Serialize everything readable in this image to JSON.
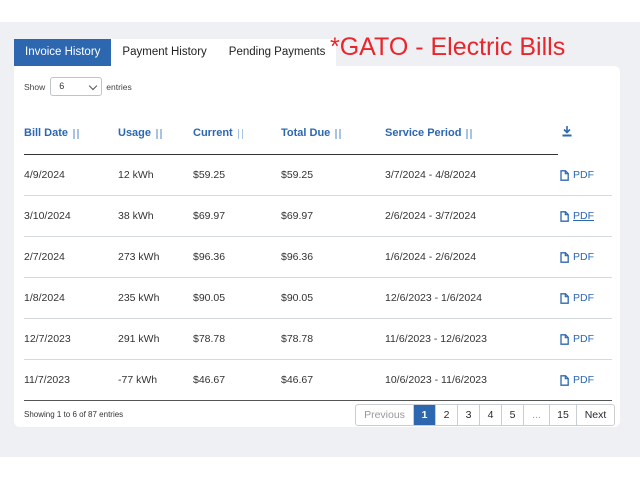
{
  "tabs": [
    {
      "label": "Invoice History",
      "active": true
    },
    {
      "label": "Payment History",
      "active": false
    },
    {
      "label": "Pending Payments",
      "active": false
    }
  ],
  "annotation": "*GATO - Electric Bills",
  "length": {
    "show_label": "Show",
    "value": "6",
    "entries_label": "entries"
  },
  "columns": [
    "Bill Date",
    "Usage",
    "Current",
    "Total Due",
    "Service Period"
  ],
  "download_column_icon": "download-icon",
  "rows": [
    {
      "bill_date": "4/9/2024",
      "usage": "12 kWh",
      "current": "$59.25",
      "total_due": "$59.25",
      "service_period": "3/7/2024 - 4/8/2024",
      "link": "PDF"
    },
    {
      "bill_date": "3/10/2024",
      "usage": "38 kWh",
      "current": "$69.97",
      "total_due": "$69.97",
      "service_period": "2/6/2024 - 3/7/2024",
      "link": "PDF"
    },
    {
      "bill_date": "2/7/2024",
      "usage": "273 kWh",
      "current": "$96.36",
      "total_due": "$96.36",
      "service_period": "1/6/2024 - 2/6/2024",
      "link": "PDF"
    },
    {
      "bill_date": "1/8/2024",
      "usage": "235 kWh",
      "current": "$90.05",
      "total_due": "$90.05",
      "service_period": "12/6/2023 - 1/6/2024",
      "link": "PDF"
    },
    {
      "bill_date": "12/7/2023",
      "usage": "291 kWh",
      "current": "$78.78",
      "total_due": "$78.78",
      "service_period": "11/6/2023 - 12/6/2023",
      "link": "PDF"
    },
    {
      "bill_date": "11/7/2023",
      "usage": "-77 kWh",
      "current": "$46.67",
      "total_due": "$46.67",
      "service_period": "10/6/2023 - 11/6/2023",
      "link": "PDF"
    }
  ],
  "info": "Showing 1 to 6 of 87 entries",
  "pagination": {
    "previous": "Previous",
    "pages": [
      "1",
      "2",
      "3",
      "4",
      "5",
      "...",
      "15"
    ],
    "current": "1",
    "next": "Next"
  },
  "colors": {
    "accent": "#2c67b0",
    "annotation": "#e8262b"
  }
}
